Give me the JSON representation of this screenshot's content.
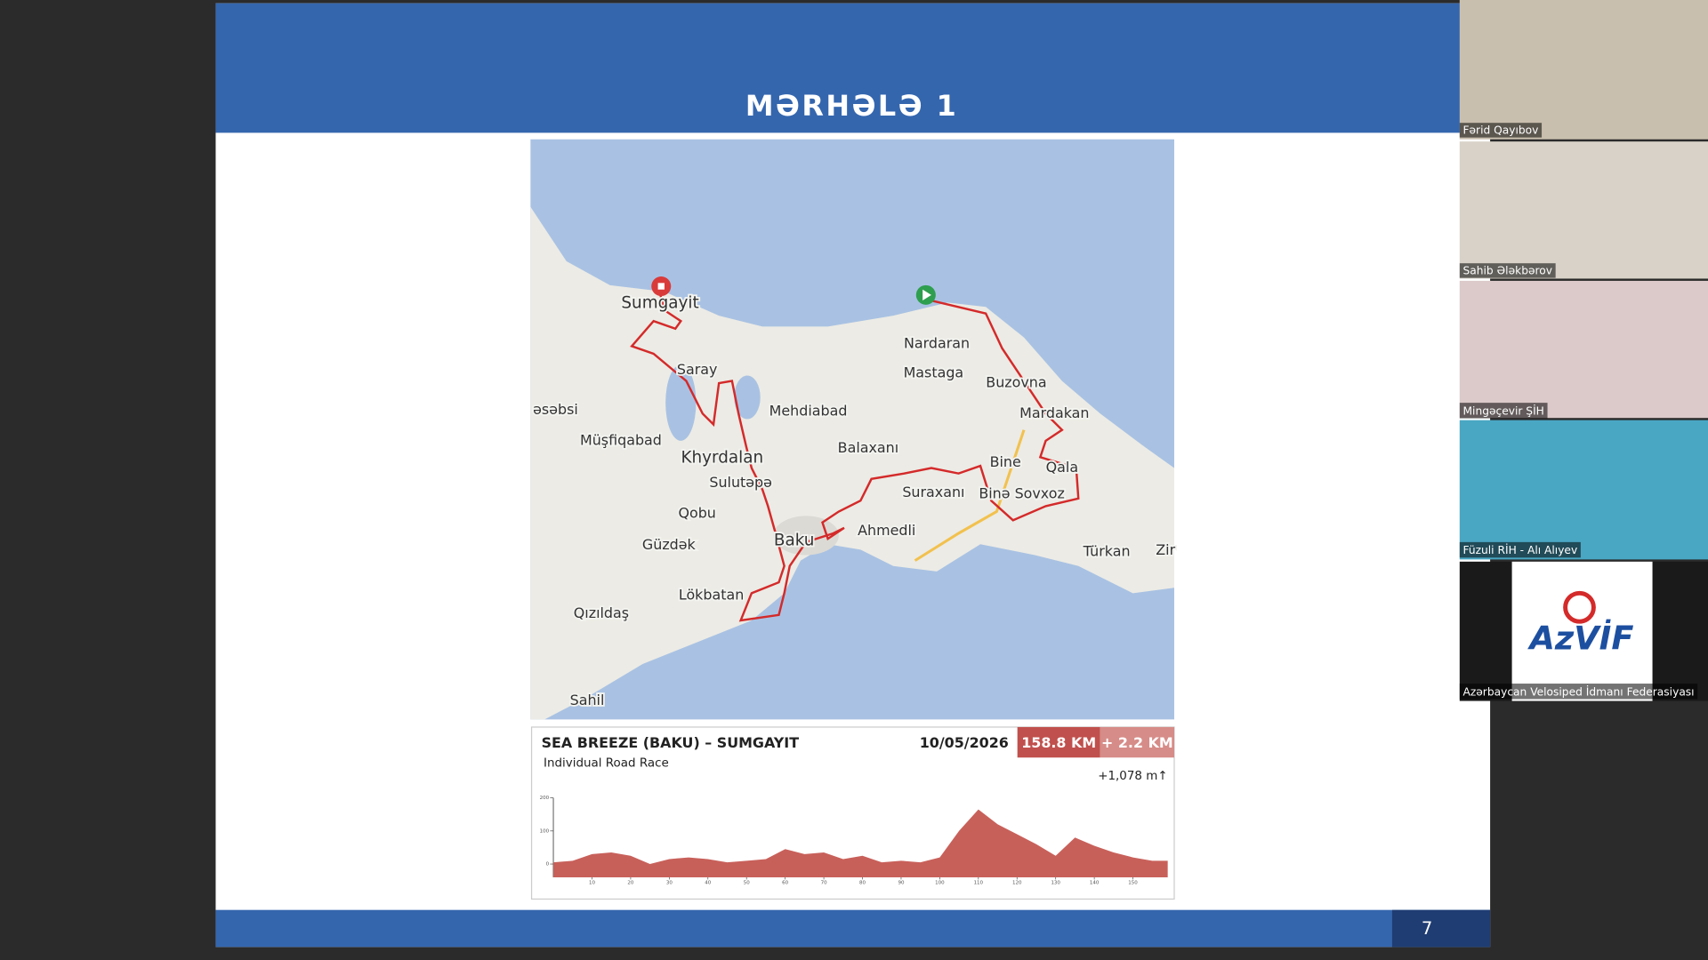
{
  "slide": {
    "title": "MƏRHƏLƏ 1",
    "page_number": "7",
    "map_labels": [
      "Sumgayit",
      "Nardaran",
      "Saray",
      "Mastaga",
      "Buzovna",
      "əsəbsi",
      "Mehdiabad",
      "Mardakan",
      "Müşfiqabad",
      "Balaxanı",
      "Khyrdalan",
      "Bine",
      "Qala",
      "Sulutəpə",
      "Suraxanı",
      "Binə Sovxoz",
      "Qobu",
      "Ahmedli",
      "Baku",
      "Güzdək",
      "Türkan",
      "Zir",
      "Lökbatan",
      "Qızıldaş",
      "Sahil"
    ],
    "race": {
      "name": "SEA BREEZE (BAKU) – SUMGAYIT",
      "date": "10/05/2026",
      "distance": "158.8 KM",
      "extra": "+ 2.2 KM",
      "type": "Individual Road Race",
      "climb": "+1,078 m↑"
    },
    "elevation_profile": {
      "type": "area",
      "color": "#c8605a",
      "x": [
        0,
        5,
        10,
        15,
        20,
        25,
        30,
        35,
        40,
        45,
        50,
        55,
        60,
        65,
        70,
        75,
        80,
        85,
        90,
        95,
        100,
        105,
        110,
        115,
        120,
        125,
        130,
        135,
        140,
        145,
        150,
        155,
        159
      ],
      "values": [
        5,
        10,
        30,
        35,
        25,
        0,
        15,
        20,
        15,
        5,
        10,
        15,
        45,
        30,
        35,
        15,
        25,
        5,
        10,
        5,
        20,
        100,
        165,
        120,
        90,
        60,
        25,
        80,
        55,
        35,
        20,
        10,
        10
      ],
      "xlim": [
        0,
        159
      ],
      "ylim": [
        -40,
        200
      ],
      "xticks": [
        10,
        20,
        30,
        40,
        50,
        60,
        70,
        80,
        90,
        100,
        110,
        120,
        130,
        140,
        150
      ],
      "yticks": [
        0,
        100,
        200
      ]
    }
  },
  "participants": [
    "Fərid Qayıbov",
    "Sahib Ələkbərov",
    "Mingəçevir ŞİH",
    "Füzuli RİH - Alı Alıyev",
    "Azərbaycan Velosiped İdmanı Federasiyası"
  ],
  "logo": "AzVİF"
}
